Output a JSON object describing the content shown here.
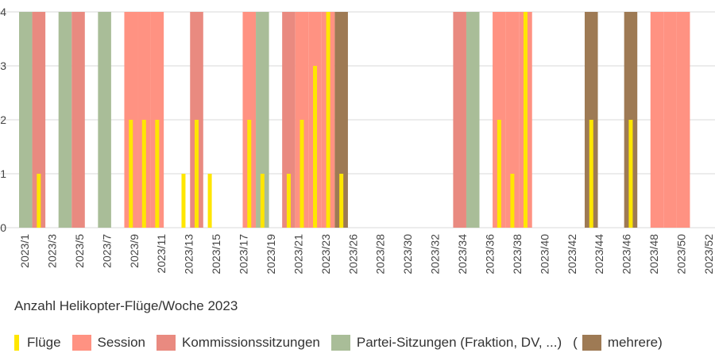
{
  "caption": "Anzahl Helikopter-Flüge/Woche 2023",
  "legend": {
    "fluege": {
      "label": "Flüge",
      "color": "#ffe600"
    },
    "session": {
      "label": "Session",
      "color": "#ff9282"
    },
    "kommission": {
      "label": "Kommissionssitzungen",
      "color": "#e98a80"
    },
    "partei": {
      "label": "Partei-Sitzungen (Fraktion, DV, ...)",
      "color": "#a9bd98",
      "suffix": "("
    },
    "mehrere": {
      "label": "mehrere)",
      "color": "#9e7a54"
    }
  },
  "chart_data": {
    "type": "bar",
    "title": "",
    "xlabel": "",
    "ylabel": "",
    "ylim": [
      0,
      4
    ],
    "yticks": [
      0,
      1,
      2,
      3,
      4
    ],
    "grid": true,
    "legend_position": "bottom",
    "weeks_total": 52,
    "year": 2023,
    "tick_labels": [
      "2023/1",
      "2023/3",
      "2023/5",
      "2023/7",
      "2023/9",
      "2023/11",
      "2023/13",
      "2023/15",
      "2023/17",
      "2023/19",
      "2023/21",
      "2023/23",
      "2023/26",
      "2023/28",
      "2023/30",
      "2023/32",
      "2023/34",
      "2023/36",
      "2023/38",
      "2023/40",
      "2023/42",
      "2023/44",
      "2023/46",
      "2023/48",
      "2023/50",
      "2023/52"
    ],
    "background_weeks": [
      {
        "week": 1,
        "category": "partei"
      },
      {
        "week": 2,
        "category": "kommission"
      },
      {
        "week": 4,
        "category": "partei"
      },
      {
        "week": 5,
        "category": "kommission"
      },
      {
        "week": 7,
        "category": "partei"
      },
      {
        "week": 9,
        "category": "session"
      },
      {
        "week": 10,
        "category": "session"
      },
      {
        "week": 11,
        "category": "session"
      },
      {
        "week": 14,
        "category": "kommission"
      },
      {
        "week": 18,
        "category": "session"
      },
      {
        "week": 19,
        "category": "partei"
      },
      {
        "week": 21,
        "category": "kommission"
      },
      {
        "week": 22,
        "category": "session"
      },
      {
        "week": 23,
        "category": "session"
      },
      {
        "week": 24,
        "category": "session"
      },
      {
        "week": 25,
        "category": "mehrere"
      },
      {
        "week": 34,
        "category": "kommission"
      },
      {
        "week": 35,
        "category": "partei"
      },
      {
        "week": 37,
        "category": "session"
      },
      {
        "week": 38,
        "category": "session"
      },
      {
        "week": 39,
        "category": "session"
      },
      {
        "week": 44,
        "category": "mehrere"
      },
      {
        "week": 47,
        "category": "mehrere"
      },
      {
        "week": 49,
        "category": "session"
      },
      {
        "week": 50,
        "category": "session"
      },
      {
        "week": 51,
        "category": "session"
      }
    ],
    "series": [
      {
        "name": "Flüge",
        "points": [
          {
            "week": 2,
            "value": 1
          },
          {
            "week": 9,
            "value": 2
          },
          {
            "week": 10,
            "value": 2
          },
          {
            "week": 11,
            "value": 2
          },
          {
            "week": 13,
            "value": 1
          },
          {
            "week": 14,
            "value": 2
          },
          {
            "week": 15,
            "value": 1
          },
          {
            "week": 18,
            "value": 2
          },
          {
            "week": 19,
            "value": 1
          },
          {
            "week": 21,
            "value": 1
          },
          {
            "week": 22,
            "value": 2
          },
          {
            "week": 23,
            "value": 3
          },
          {
            "week": 24,
            "value": 4
          },
          {
            "week": 25,
            "value": 1
          },
          {
            "week": 37,
            "value": 2
          },
          {
            "week": 38,
            "value": 1
          },
          {
            "week": 39,
            "value": 4
          },
          {
            "week": 44,
            "value": 2
          },
          {
            "week": 47,
            "value": 2
          }
        ]
      }
    ]
  }
}
